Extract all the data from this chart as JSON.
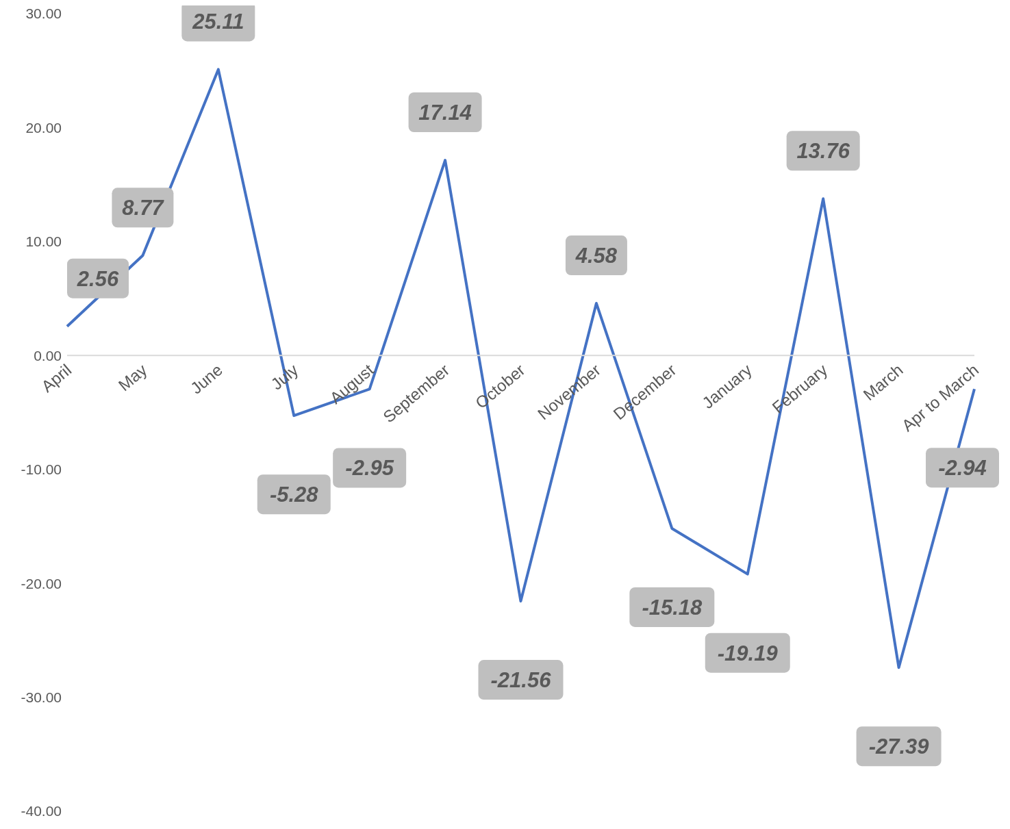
{
  "chart_data": {
    "type": "line",
    "categories": [
      "April",
      "May",
      "June",
      "July",
      "August",
      "September",
      "October",
      "November",
      "December",
      "January",
      "February",
      "March",
      "Apr to March"
    ],
    "series": [
      {
        "color": "#4472c4",
        "values": [
          2.56,
          8.77,
          25.11,
          -5.28,
          -2.95,
          17.14,
          -21.56,
          4.58,
          -15.18,
          -19.19,
          13.76,
          -27.39,
          -2.94
        ]
      }
    ],
    "ylim": [
      -40,
      30
    ],
    "yticks": [
      {
        "value": -40,
        "label": "-40.00"
      },
      {
        "value": -30,
        "label": "-30.00"
      },
      {
        "value": -20,
        "label": "-20.00"
      },
      {
        "value": -10,
        "label": "-10.00"
      },
      {
        "value": 0,
        "label": "0.00"
      },
      {
        "value": 10,
        "label": "10.00"
      },
      {
        "value": 20,
        "label": "20.00"
      },
      {
        "value": 30,
        "label": "30.00"
      }
    ],
    "data_labels": true,
    "marker": "none",
    "line_style": "solid"
  }
}
